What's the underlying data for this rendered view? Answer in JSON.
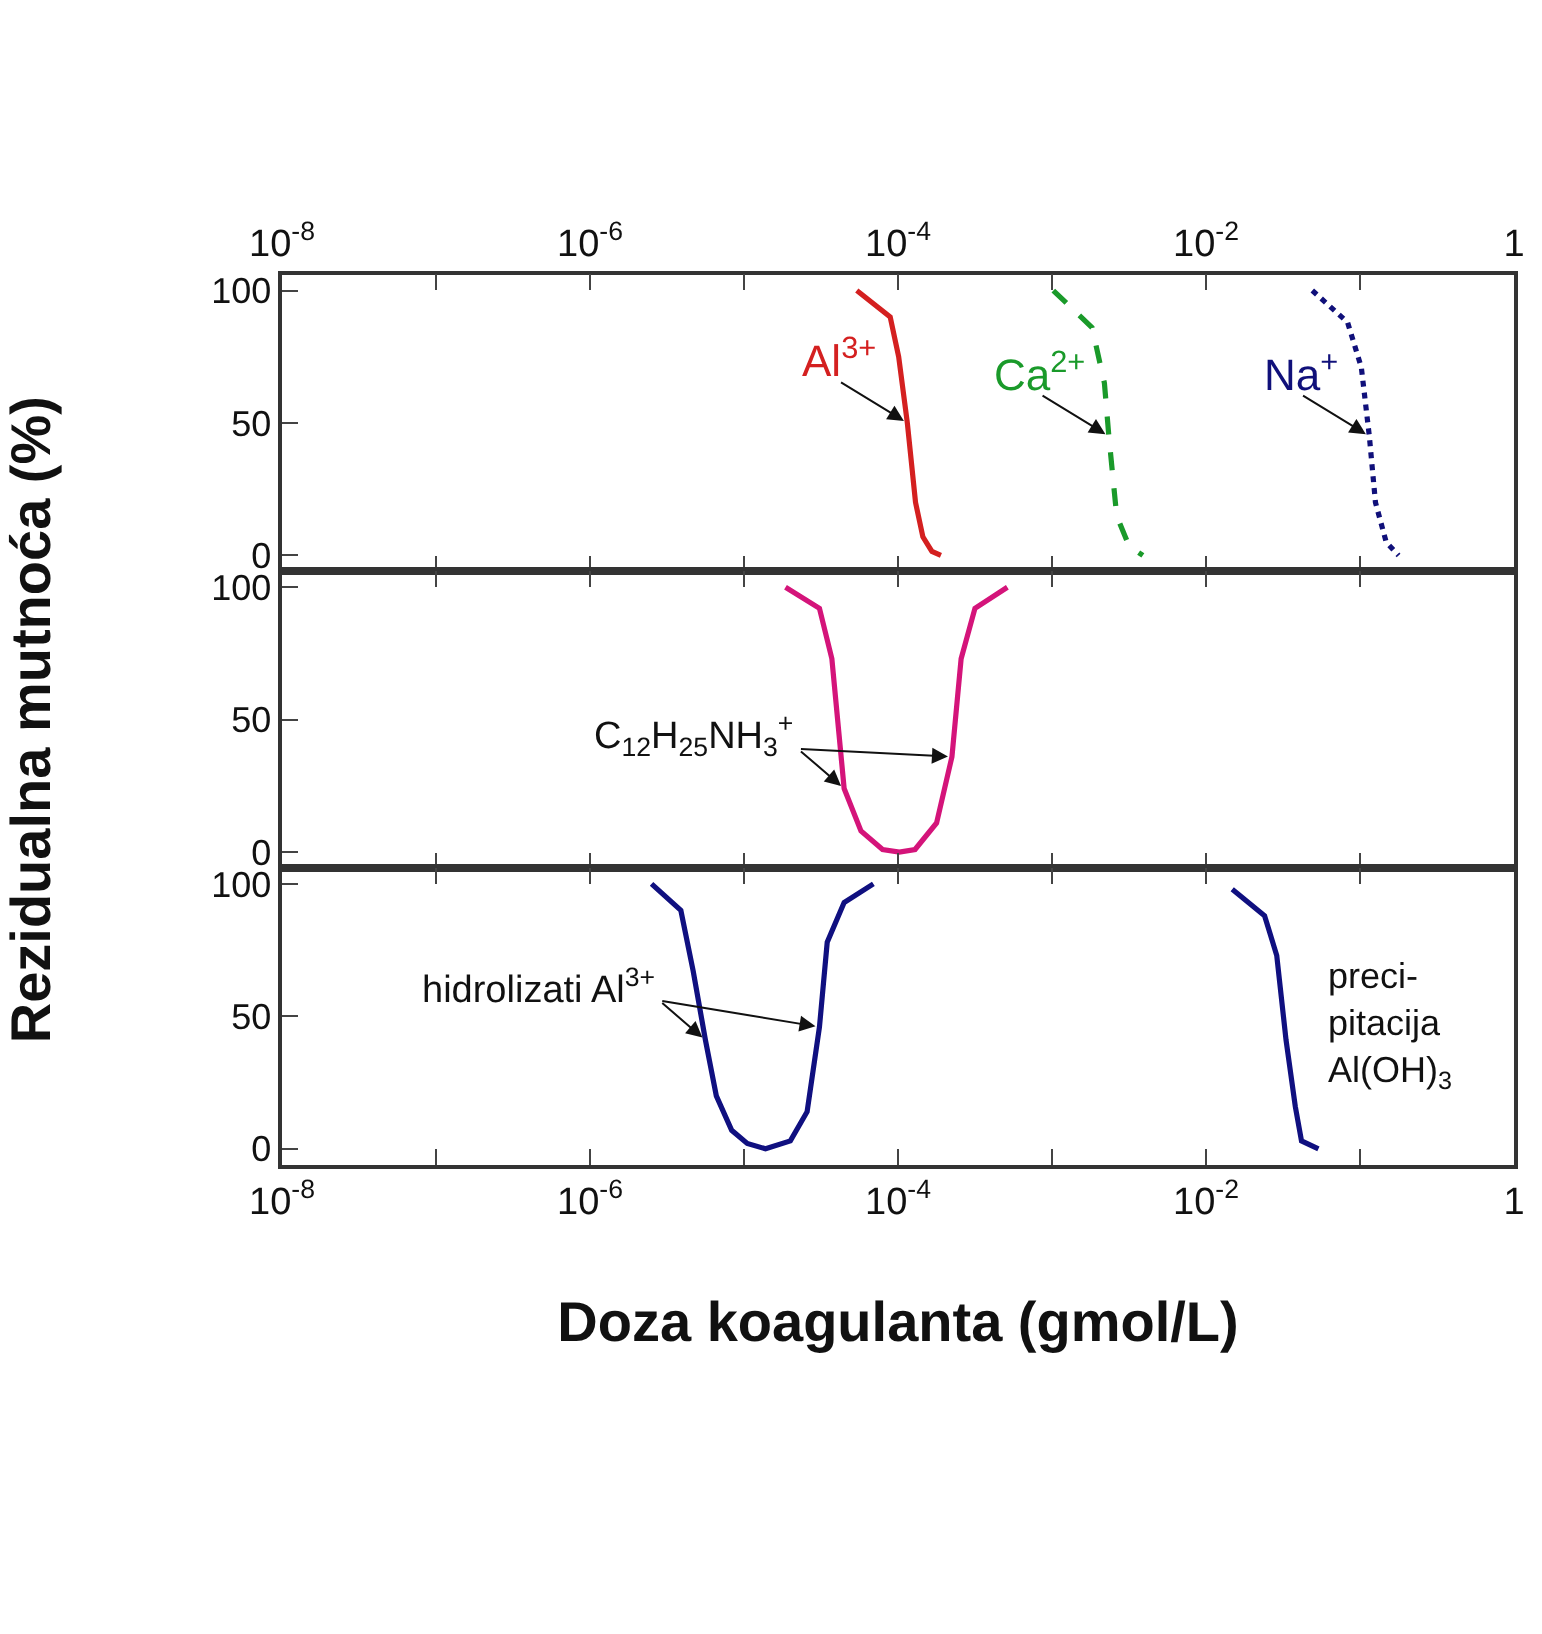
{
  "chart_data": [
    {
      "type": "line",
      "xlim": [
        1e-08,
        1
      ],
      "xticks": [
        {
          "value": 1e-08,
          "label": "10$^{-8}$"
        },
        {
          "value": 1e-07,
          "label": null
        },
        {
          "value": 1e-06,
          "label": "10$^{-6}$"
        },
        {
          "value": 1e-05,
          "label": null
        },
        {
          "value": 0.0001,
          "label": "10$^{-4}$"
        },
        {
          "value": 0.001,
          "label": null
        },
        {
          "value": 0.01,
          "label": "10$^{-2}$"
        },
        {
          "value": 0.1,
          "label": null
        },
        {
          "value": 1,
          "label": "1"
        }
      ],
      "log": "x",
      "ylim": [
        -6,
        106
      ],
      "yticks": [
        0,
        50,
        100
      ],
      "series": [
        {
          "name": "Al$^{3+}$",
          "color": "#d42020",
          "line_style": "solid",
          "x": [
            5.4e-05,
            8.9e-05,
            0.000101,
            0.000115,
            0.00013,
            0.000145,
            0.000166,
            0.00019
          ],
          "values": [
            100,
            90,
            75,
            50,
            20,
            7,
            1.5,
            0
          ]
        },
        {
          "name": "Ca$^{2+}$",
          "color": "#1a9a2a",
          "line_style": "dashed",
          "x": [
            0.00102,
            0.00182,
            0.00219,
            0.00234,
            0.00263,
            0.00316,
            0.00389
          ],
          "values": [
            100,
            86,
            65,
            45,
            15,
            3.6,
            0
          ]
        },
        {
          "name": "Na$^{+}$",
          "color": "#10107a",
          "line_style": "dotted",
          "x": [
            0.049,
            0.083,
            0.102,
            0.115,
            0.126,
            0.148,
            0.178
          ],
          "values": [
            100,
            88,
            71,
            45,
            20,
            5,
            0
          ]
        }
      ]
    },
    {
      "type": "line",
      "xlim": [
        1e-08,
        1
      ],
      "xticks": [
        {
          "value": 1e-08,
          "label": "10$^{-8}$"
        },
        {
          "value": 1e-07,
          "label": null
        },
        {
          "value": 1e-06,
          "label": "10$^{-6}$"
        },
        {
          "value": 1e-05,
          "label": null
        },
        {
          "value": 0.0001,
          "label": "10$^{-4}$"
        },
        {
          "value": 0.001,
          "label": null
        },
        {
          "value": 0.01,
          "label": "10$^{-2}$"
        },
        {
          "value": 0.1,
          "label": null
        },
        {
          "value": 1,
          "label": "1"
        }
      ],
      "tick_labels": "y",
      "log": "x",
      "ylim": [
        -6,
        106
      ],
      "yticks": [
        0,
        50,
        100
      ],
      "ylabel": "Rezidualna mutnoća (%)",
      "annotations": [
        {
          "text": "C$_{12}$H$_{25}$NH$_{3}$$^{+}$",
          "x": 4.47e-05,
          "y": 24
        }
      ],
      "series": [
        {
          "color": "#d4147a",
          "line_style": "solid",
          "x": [
            1.86e-05,
            3.09e-05,
            3.72e-05,
            4.47e-05,
            5.75e-05,
            7.94e-05,
            0.000102,
            0.000129,
            0.000178,
            0.000224,
            0.000257,
            0.000316,
            0.000513
          ],
          "values": [
            100,
            92,
            73,
            24,
            8,
            1,
            0,
            1,
            11,
            36,
            73,
            92,
            100
          ]
        }
      ]
    },
    {
      "type": "line",
      "xlim": [
        1e-08,
        1
      ],
      "xticks": [
        {
          "value": 1e-08,
          "label": "10$^{-8}$"
        },
        {
          "value": 1e-07,
          "label": null
        },
        {
          "value": 1e-06,
          "label": "10$^{-6}$"
        },
        {
          "value": 1e-05,
          "label": null
        },
        {
          "value": 0.0001,
          "label": "10$^{-4}$"
        },
        {
          "value": 0.001,
          "label": null
        },
        {
          "value": 0.01,
          "label": "10$^{-2}$"
        },
        {
          "value": 0.1,
          "label": null
        },
        {
          "value": 1,
          "label": "1"
        }
      ],
      "log": "x",
      "ylim": [
        -6,
        106
      ],
      "yticks": [
        0,
        50,
        100
      ],
      "xlabel": "Doza koagulanta (gmol/L)",
      "annotations": [
        {
          "text": "hidrolizati Al$^{3+}$",
          "x": 5.62e-06,
          "y": 41
        },
        "preci-\npitacija\nAl(OH)$_{3}$"
      ],
      "series": [
        {
          "color": "#101080",
          "line_style": "solid",
          "x": [
            2.51e-06,
            3.89e-06,
            4.68e-06,
            5.62e-06,
            6.61e-06,
            8.32e-06,
            1.05e-05,
            1.38e-05,
            2e-05,
            2.57e-05,
            3.09e-05,
            3.47e-05,
            4.47e-05,
            6.92e-05
          ],
          "values": [
            100,
            90,
            67,
            41,
            20,
            7,
            2,
            0,
            3,
            14,
            46,
            78,
            93,
            100
          ]
        },
        {
          "color": "#101080",
          "line_style": "solid",
          "x": [
            0.0148,
            0.024,
            0.0288,
            0.0331,
            0.038,
            0.0417,
            0.0537
          ],
          "values": [
            98,
            88,
            73,
            41,
            16,
            3,
            0
          ]
        }
      ]
    }
  ]
}
